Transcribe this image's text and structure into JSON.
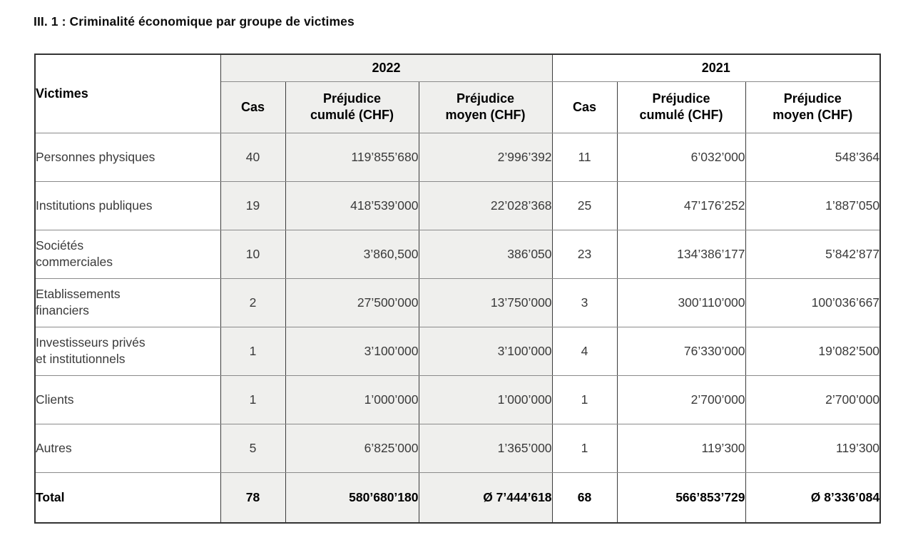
{
  "page": {
    "title": "III. 1 : Criminalité économique par groupe de victimes"
  },
  "colors": {
    "group_2022_background": "#efefed",
    "group_2021_background": "#ffffff",
    "row_divider": "#8a8a8a",
    "column_divider": "#3c3c3c",
    "text": "#3a3a3a"
  },
  "table": {
    "corner_header": "Victimes",
    "year_groups": [
      {
        "year": "2022",
        "columns": [
          "Cas",
          "Préjudice cumulé (CHF)",
          "Préjudice moyen (CHF)"
        ]
      },
      {
        "year": "2021",
        "columns": [
          "Cas",
          "Préjudice cumulé (CHF)",
          "Préjudice moyen (CHF)"
        ]
      }
    ],
    "rows": [
      {
        "label": "Personnes physiques",
        "values": [
          "40",
          "119’855’680",
          "2’996’392",
          "11",
          "6’032’000",
          "548’364"
        ]
      },
      {
        "label": "Institutions publiques",
        "values": [
          "19",
          "418’539’000",
          "22’028’368",
          "25",
          "47’176’252",
          "1’887’050"
        ]
      },
      {
        "label": "Sociétés\ncommerciales",
        "values": [
          "10",
          "3’860,500",
          "386’050",
          "23",
          "134’386’177",
          "5’842’877"
        ]
      },
      {
        "label": "Etablissements\nfinanciers",
        "values": [
          "2",
          "27’500’000",
          "13’750’000",
          "3",
          "300’110’000",
          "100’036’667"
        ]
      },
      {
        "label": "Investisseurs privés\net institutionnels",
        "values": [
          "1",
          "3’100’000",
          "3’100’000",
          "4",
          "76’330’000",
          "19’082’500"
        ]
      },
      {
        "label": "Clients",
        "values": [
          "1",
          "1’000’000",
          "1’000’000",
          "1",
          "2’700’000",
          "2’700’000"
        ]
      },
      {
        "label": "Autres",
        "values": [
          "5",
          "6’825’000",
          "1’365’000",
          "1",
          "119’300",
          "119’300"
        ]
      }
    ],
    "total": {
      "label": "Total",
      "values": [
        "78",
        "580’680’180",
        "Ø 7’444’618",
        "68",
        "566’853’729",
        "Ø 8’336’084"
      ]
    }
  }
}
